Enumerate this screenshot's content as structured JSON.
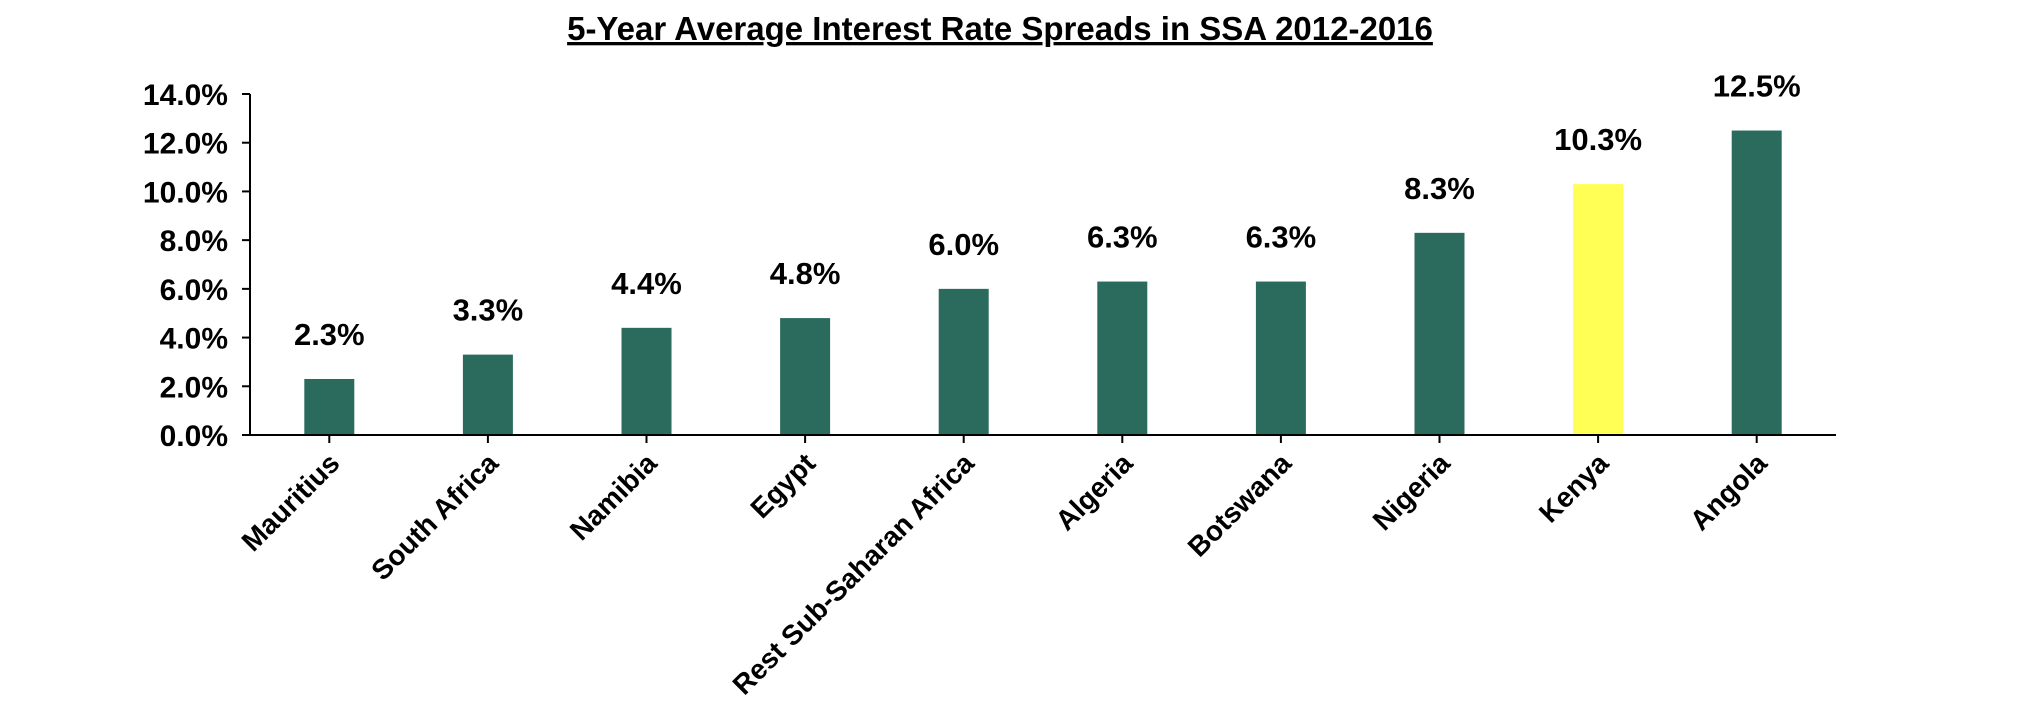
{
  "chart_data": {
    "type": "bar",
    "title": "5-Year Average Interest Rate Spreads in SSA 2012-2016",
    "xlabel": "",
    "ylabel": "",
    "categories": [
      "Mauritius",
      "South Africa",
      "Namibia",
      "Egypt",
      "Rest Sub-Saharan Africa",
      "Algeria",
      "Botswana",
      "Nigeria",
      "Kenya",
      "Angola"
    ],
    "values": [
      2.3,
      3.3,
      4.4,
      4.8,
      6.0,
      6.3,
      6.3,
      8.3,
      10.3,
      12.5
    ],
    "data_labels": [
      "2.3%",
      "3.3%",
      "4.4%",
      "4.8%",
      "6.0%",
      "6.3%",
      "6.3%",
      "8.3%",
      "10.3%",
      "12.5%"
    ],
    "ylim": [
      0,
      14
    ],
    "y_ticks": [
      0,
      2,
      4,
      6,
      8,
      10,
      12,
      14
    ],
    "y_tick_labels": [
      "0.0%",
      "2.0%",
      "4.0%",
      "6.0%",
      "8.0%",
      "10.0%",
      "12.0%",
      "14.0%"
    ],
    "grid": false,
    "legend": "none",
    "colors": {
      "bar": "#2a6b5e",
      "highlight": "#ffff55",
      "axis": "#000000"
    },
    "highlight_category": "Kenya"
  }
}
